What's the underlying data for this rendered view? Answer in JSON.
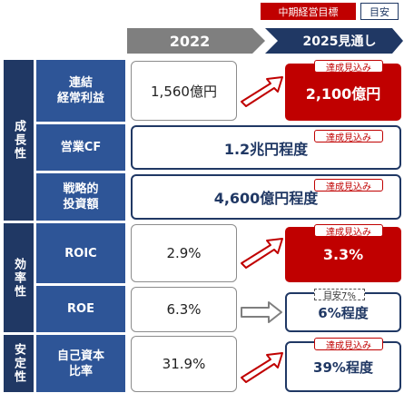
{
  "legend": {
    "midterm_target": "中期経営目標",
    "guideline": "目安"
  },
  "columns": {
    "year_2022": "2022",
    "year_2025": "2025見通し"
  },
  "categories": {
    "growth": "成長性",
    "efficiency": "効率性",
    "stability": "安定性"
  },
  "rows": {
    "consolidated_profit": {
      "label": "連結\n経常利益",
      "v2022": "1,560億円",
      "v2025": "2,100億円",
      "tag": "達成見込み"
    },
    "operating_cf": {
      "label": "営業CF",
      "value": "1.2兆円程度",
      "tag": "達成見込み"
    },
    "strategic_investment": {
      "label": "戦略的\n投資額",
      "value": "4,600億円程度",
      "tag": "達成見込み"
    },
    "roic": {
      "label": "ROIC",
      "v2022": "2.9%",
      "v2025": "3.3%",
      "tag": "達成見込み"
    },
    "roe": {
      "label": "ROE",
      "v2022": "6.3%",
      "v2025": "6%程度",
      "tag": "目安7%"
    },
    "equity_ratio": {
      "label": "自己資本\n比率",
      "v2022": "31.9%",
      "v2025": "39%程度",
      "tag": "達成見込み"
    }
  },
  "colors": {
    "navy": "#203864",
    "blue": "#2e5597",
    "red": "#c00000",
    "gray_header": "#7f7f7f"
  }
}
